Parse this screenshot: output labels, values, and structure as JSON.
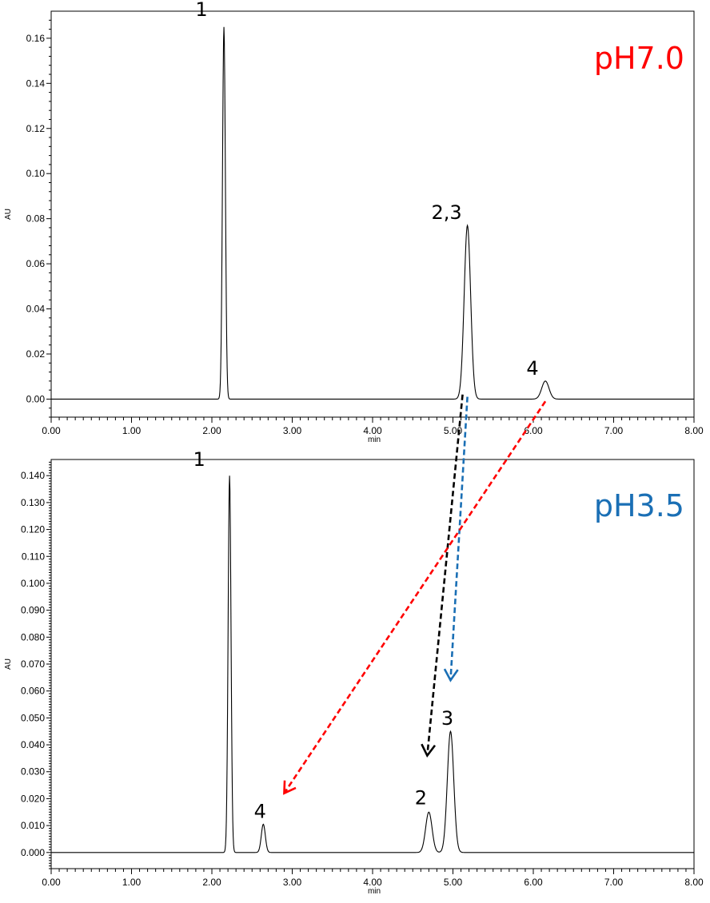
{
  "chart_data": [
    {
      "type": "line",
      "title": "pH7.0",
      "title_color": "#ff0000",
      "xlabel": "min",
      "ylabel": "AU",
      "xlim": [
        0,
        8
      ],
      "ylim": [
        -0.008,
        0.172
      ],
      "x_ticks": [
        "0.00",
        "1.00",
        "2.00",
        "3.00",
        "4.00",
        "5.00",
        "6.00",
        "7.00",
        "8.00"
      ],
      "y_ticks": [
        "0.00",
        "0.02",
        "0.04",
        "0.06",
        "0.08",
        "0.10",
        "0.12",
        "0.14",
        "0.16"
      ],
      "peaks": [
        {
          "label": "1",
          "time": 2.15,
          "height": 0.165,
          "sigma": 0.018
        },
        {
          "label": "2,3",
          "time": 5.18,
          "height": 0.077,
          "sigma": 0.04
        },
        {
          "label": "4",
          "time": 6.15,
          "height": 0.008,
          "sigma": 0.045
        }
      ],
      "grid": false
    },
    {
      "type": "line",
      "title": "pH3.5",
      "title_color": "#1a6fb5",
      "xlabel": "min",
      "ylabel": "AU",
      "xlim": [
        0,
        8
      ],
      "ylim": [
        -0.006,
        0.146
      ],
      "x_ticks": [
        "0.00",
        "1.00",
        "2.00",
        "3.00",
        "4.00",
        "5.00",
        "6.00",
        "7.00",
        "8.00"
      ],
      "y_ticks": [
        "0.000",
        "0.010",
        "0.020",
        "0.030",
        "0.040",
        "0.050",
        "0.060",
        "0.070",
        "0.080",
        "0.090",
        "0.100",
        "0.110",
        "0.120",
        "0.130",
        "0.140"
      ],
      "peaks": [
        {
          "label": "1",
          "time": 2.22,
          "height": 0.14,
          "sigma": 0.018
        },
        {
          "label": "4",
          "time": 2.64,
          "height": 0.0105,
          "sigma": 0.025
        },
        {
          "label": "2",
          "time": 4.7,
          "height": 0.015,
          "sigma": 0.04
        },
        {
          "label": "3",
          "time": 4.97,
          "height": 0.045,
          "sigma": 0.04
        }
      ],
      "grid": false
    }
  ],
  "annotations": {
    "arrows": [
      {
        "name": "black",
        "color": "#000000",
        "from_panel": 0,
        "from_time": 5.12,
        "from_value": 0.002,
        "to_panel": 1,
        "to_time": 4.68,
        "to_value": 0.036
      },
      {
        "name": "blue",
        "color": "#1a6fb5",
        "from_panel": 0,
        "from_time": 5.18,
        "from_value": 0.001,
        "to_panel": 1,
        "to_time": 4.97,
        "to_value": 0.064
      },
      {
        "name": "red",
        "color": "#ff0000",
        "from_panel": 0,
        "from_time": 6.15,
        "from_value": -0.001,
        "to_panel": 1,
        "to_time": 2.9,
        "to_value": 0.022
      }
    ]
  }
}
